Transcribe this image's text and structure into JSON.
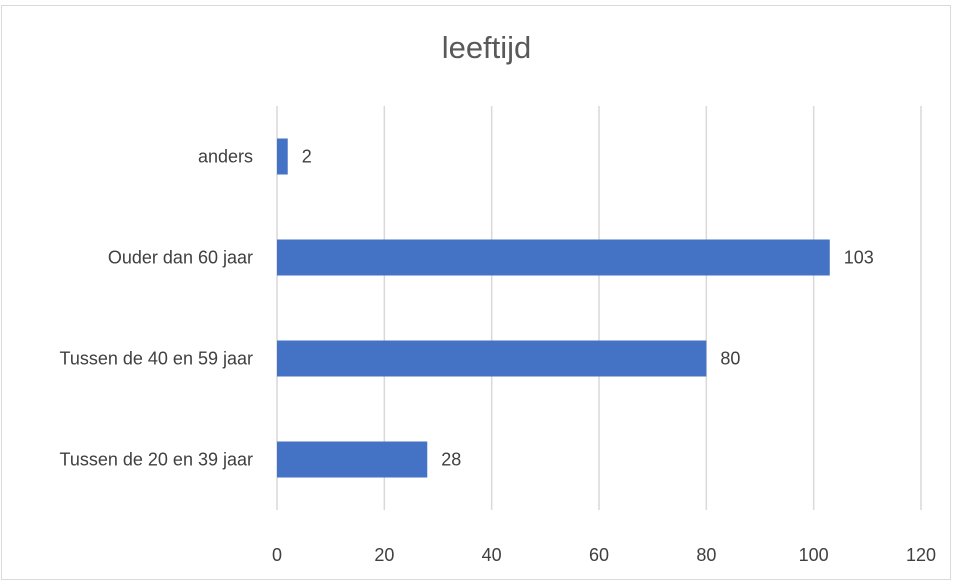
{
  "chart_data": {
    "type": "bar",
    "orientation": "horizontal",
    "title": "leeftijd",
    "categories": [
      "anders",
      "Ouder dan 60 jaar",
      "Tussen de 40 en 59 jaar",
      "Tussen de 20 en 39 jaar"
    ],
    "values": [
      2,
      103,
      80,
      28
    ],
    "xlim": [
      0,
      120
    ],
    "x_ticks": [
      "0",
      "20",
      "40",
      "60",
      "80",
      "100",
      "120"
    ],
    "grid": true,
    "data_labels": true,
    "bar_color": "#4472c4"
  }
}
